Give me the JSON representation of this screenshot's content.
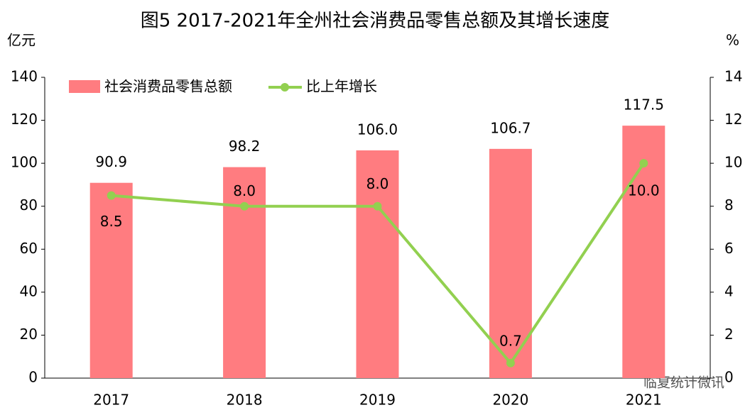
{
  "chart_data": {
    "type": "bar",
    "title": "图5  2017-2021年全州社会消费品零售总额及其增长速度",
    "y_label": "亿元",
    "y2_label": "%",
    "categories": [
      "2017",
      "2018",
      "2019",
      "2020",
      "2021"
    ],
    "series": [
      {
        "name": "社会消费品零售总额",
        "type": "bar",
        "color": "#ff7c80",
        "values": [
          90.9,
          98.2,
          106,
          106.7,
          117.5
        ],
        "value_labels": [
          "90.9",
          "98.2",
          "106.0",
          "106.7",
          "117.5"
        ]
      },
      {
        "name": "比上年增长",
        "type": "line",
        "axis": "y2",
        "color": "#92d050",
        "values": [
          8.5,
          8,
          8,
          0.7,
          10
        ],
        "value_labels": [
          "8.5",
          "8.0",
          "8.0",
          "0.7",
          "10.0"
        ]
      }
    ],
    "ylim": [
      0,
      140
    ],
    "yticks": [
      0,
      20,
      40,
      60,
      80,
      100,
      120,
      140
    ],
    "y2lim": [
      0,
      14
    ],
    "y2ticks": [
      0,
      2,
      4,
      6,
      8,
      10,
      12,
      14
    ],
    "grid": false,
    "legend": "top-left",
    "watermark": "临夏统计微讯"
  }
}
